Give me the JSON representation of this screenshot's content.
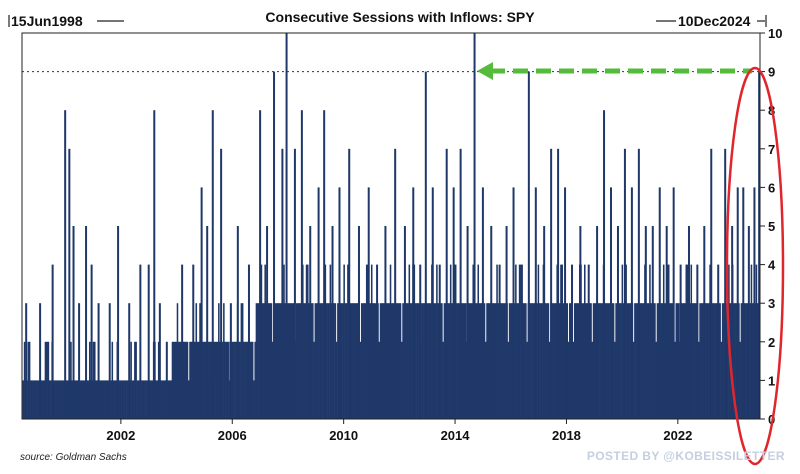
{
  "chart_data": {
    "type": "bar",
    "title": "Consecutive Sessions with Inflows: SPY",
    "start_label": "15Jun1998",
    "end_label": "10Dec2024",
    "x_tick_labels": [
      "2002",
      "2006",
      "2010",
      "2014",
      "2018",
      "2022"
    ],
    "x_ticks": [
      2002,
      2006,
      2010,
      2014,
      2018,
      2022
    ],
    "xlim": [
      1998.45,
      2024.95
    ],
    "y_tick_labels": [
      "0",
      "1",
      "2",
      "3",
      "4",
      "5",
      "6",
      "7",
      "8",
      "9",
      "10"
    ],
    "ylim": [
      0,
      10
    ],
    "reference_line_value": 9,
    "xlabel": "",
    "ylabel": "",
    "notable_peaks": [
      {
        "x": 1998.6,
        "value": 3
      },
      {
        "x": 1999.1,
        "value": 3
      },
      {
        "x": 1999.3,
        "value": 2
      },
      {
        "x": 1999.55,
        "value": 4
      },
      {
        "x": 2000.0,
        "value": 8
      },
      {
        "x": 2000.15,
        "value": 7
      },
      {
        "x": 2000.3,
        "value": 5
      },
      {
        "x": 2000.5,
        "value": 3
      },
      {
        "x": 2000.75,
        "value": 5
      },
      {
        "x": 2000.95,
        "value": 4
      },
      {
        "x": 2001.2,
        "value": 3
      },
      {
        "x": 2001.6,
        "value": 3
      },
      {
        "x": 2001.9,
        "value": 5
      },
      {
        "x": 2002.3,
        "value": 3
      },
      {
        "x": 2002.7,
        "value": 4
      },
      {
        "x": 2003.0,
        "value": 4
      },
      {
        "x": 2003.2,
        "value": 8
      },
      {
        "x": 2003.4,
        "value": 3
      },
      {
        "x": 2003.65,
        "value": 2
      },
      {
        "x": 2004.2,
        "value": 4
      },
      {
        "x": 2004.6,
        "value": 4
      },
      {
        "x": 2004.9,
        "value": 6
      },
      {
        "x": 2005.1,
        "value": 5
      },
      {
        "x": 2005.3,
        "value": 8
      },
      {
        "x": 2005.6,
        "value": 7
      },
      {
        "x": 2005.95,
        "value": 3
      },
      {
        "x": 2006.2,
        "value": 5
      },
      {
        "x": 2006.6,
        "value": 4
      },
      {
        "x": 2007.0,
        "value": 8
      },
      {
        "x": 2007.25,
        "value": 5
      },
      {
        "x": 2007.5,
        "value": 9
      },
      {
        "x": 2007.8,
        "value": 7
      },
      {
        "x": 2007.95,
        "value": 10
      },
      {
        "x": 2008.25,
        "value": 7
      },
      {
        "x": 2008.5,
        "value": 8
      },
      {
        "x": 2008.8,
        "value": 5
      },
      {
        "x": 2009.1,
        "value": 6
      },
      {
        "x": 2009.3,
        "value": 8
      },
      {
        "x": 2009.6,
        "value": 5
      },
      {
        "x": 2009.85,
        "value": 6
      },
      {
        "x": 2010.2,
        "value": 7
      },
      {
        "x": 2010.55,
        "value": 5
      },
      {
        "x": 2010.9,
        "value": 6
      },
      {
        "x": 2011.2,
        "value": 4
      },
      {
        "x": 2011.5,
        "value": 5
      },
      {
        "x": 2011.85,
        "value": 7
      },
      {
        "x": 2012.2,
        "value": 5
      },
      {
        "x": 2012.5,
        "value": 6
      },
      {
        "x": 2012.75,
        "value": 4
      },
      {
        "x": 2012.95,
        "value": 9
      },
      {
        "x": 2013.2,
        "value": 6
      },
      {
        "x": 2013.45,
        "value": 4
      },
      {
        "x": 2013.7,
        "value": 7
      },
      {
        "x": 2013.95,
        "value": 6
      },
      {
        "x": 2014.2,
        "value": 7
      },
      {
        "x": 2014.45,
        "value": 5
      },
      {
        "x": 2014.7,
        "value": 10
      },
      {
        "x": 2015.0,
        "value": 6
      },
      {
        "x": 2015.3,
        "value": 5
      },
      {
        "x": 2015.6,
        "value": 4
      },
      {
        "x": 2015.85,
        "value": 5
      },
      {
        "x": 2016.1,
        "value": 6
      },
      {
        "x": 2016.4,
        "value": 4
      },
      {
        "x": 2016.65,
        "value": 9
      },
      {
        "x": 2016.9,
        "value": 6
      },
      {
        "x": 2017.2,
        "value": 5
      },
      {
        "x": 2017.45,
        "value": 7
      },
      {
        "x": 2017.7,
        "value": 7
      },
      {
        "x": 2017.95,
        "value": 6
      },
      {
        "x": 2018.2,
        "value": 4
      },
      {
        "x": 2018.5,
        "value": 5
      },
      {
        "x": 2018.8,
        "value": 4
      },
      {
        "x": 2019.1,
        "value": 5
      },
      {
        "x": 2019.35,
        "value": 8
      },
      {
        "x": 2019.6,
        "value": 6
      },
      {
        "x": 2019.85,
        "value": 5
      },
      {
        "x": 2020.1,
        "value": 7
      },
      {
        "x": 2020.35,
        "value": 6
      },
      {
        "x": 2020.6,
        "value": 7
      },
      {
        "x": 2020.85,
        "value": 5
      },
      {
        "x": 2021.1,
        "value": 5
      },
      {
        "x": 2021.35,
        "value": 6
      },
      {
        "x": 2021.6,
        "value": 5
      },
      {
        "x": 2021.85,
        "value": 6
      },
      {
        "x": 2022.1,
        "value": 4
      },
      {
        "x": 2022.4,
        "value": 5
      },
      {
        "x": 2022.7,
        "value": 4
      },
      {
        "x": 2022.95,
        "value": 5
      },
      {
        "x": 2023.2,
        "value": 7
      },
      {
        "x": 2023.45,
        "value": 4
      },
      {
        "x": 2023.7,
        "value": 7
      },
      {
        "x": 2023.95,
        "value": 5
      },
      {
        "x": 2024.15,
        "value": 6
      },
      {
        "x": 2024.35,
        "value": 6
      },
      {
        "x": 2024.55,
        "value": 5
      },
      {
        "x": 2024.75,
        "value": 6
      },
      {
        "x": 2024.92,
        "value": 9
      }
    ]
  },
  "source": "source: Goldman Sachs",
  "watermark": "POSTED BY @KOBEISSILETTER",
  "colors": {
    "bars": "#1f3869",
    "reference_line": "#1f3869",
    "arrow": "#55bb3a",
    "highlight_ellipse": "#e0262c",
    "frame": "#222222",
    "watermark": "#c5cfe0"
  }
}
